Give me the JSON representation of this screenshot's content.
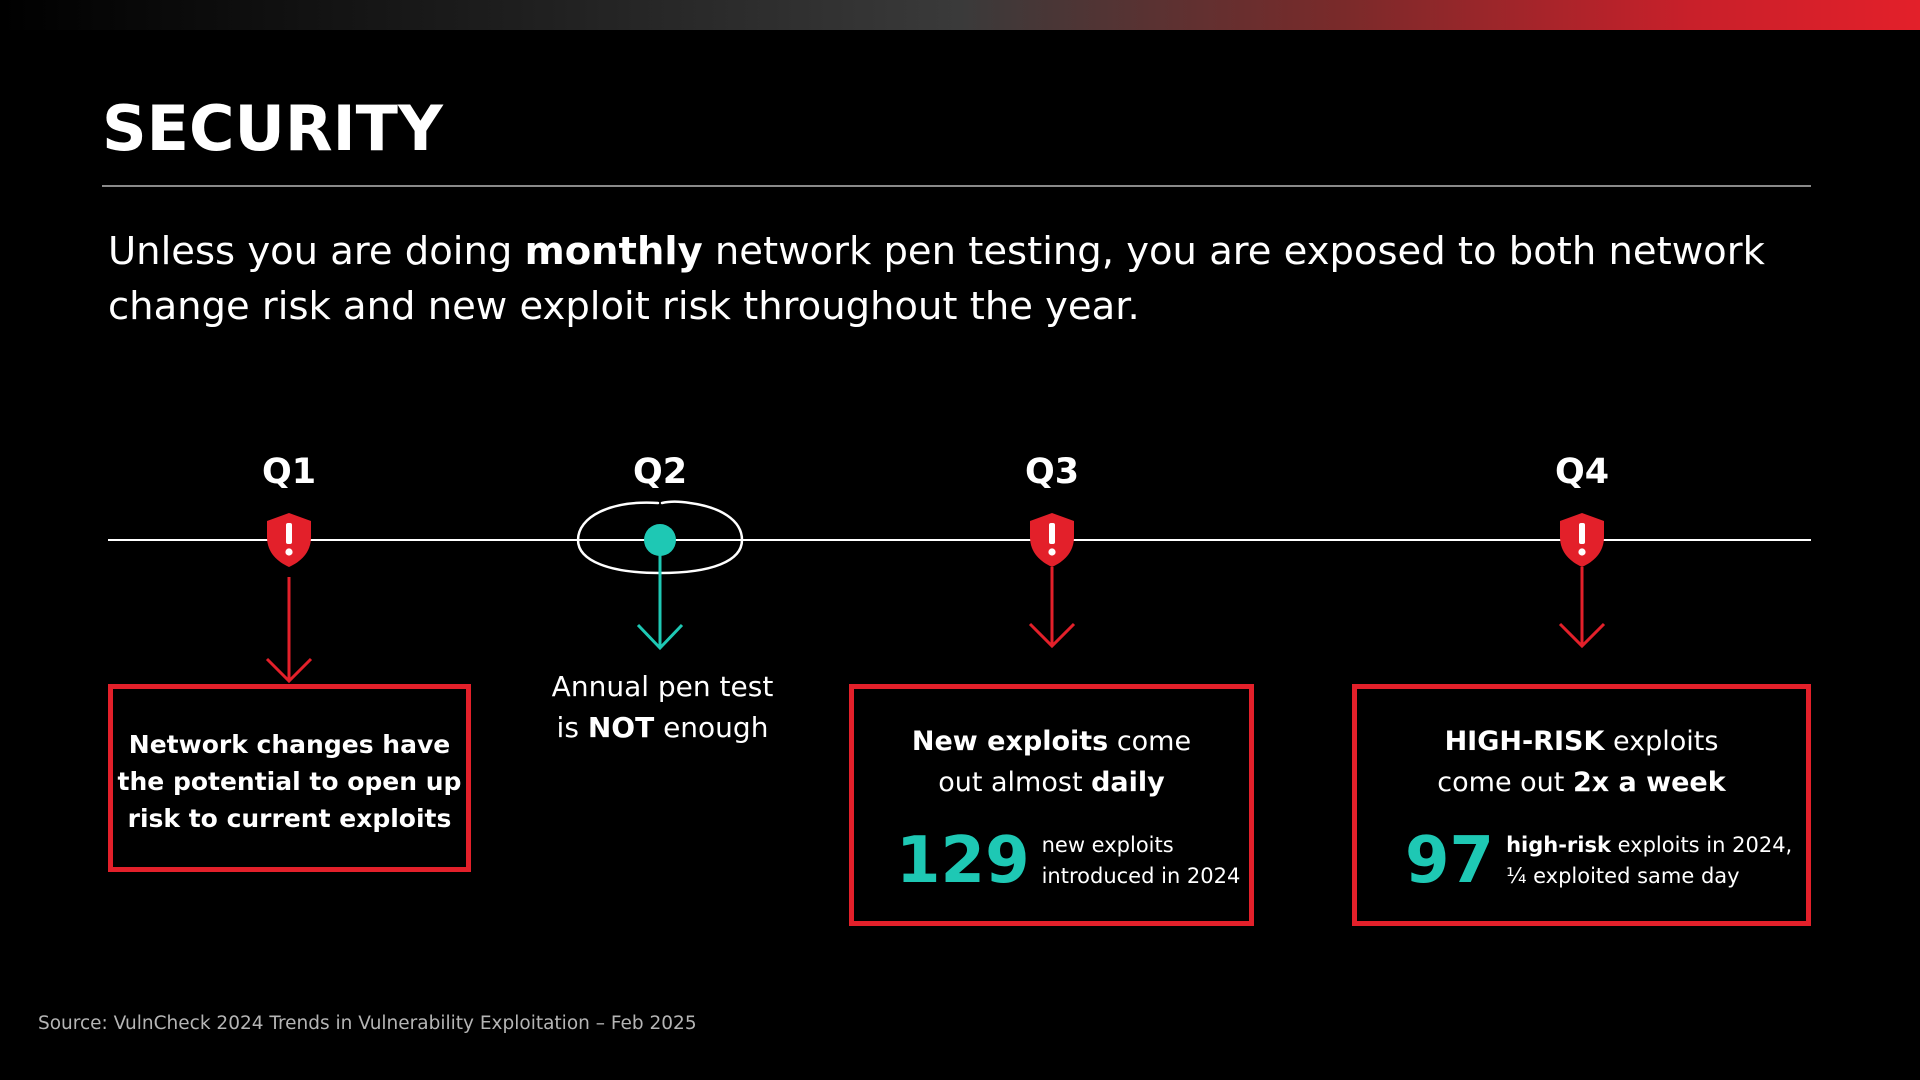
{
  "colors": {
    "accent_red": "#e3202a",
    "accent_teal": "#1ec8b4",
    "background": "#000000"
  },
  "title": "SECURITY",
  "intro": {
    "part1": "Unless you are doing ",
    "bold": "monthly",
    "part2": " network pen testing, you are exposed to both network change risk and new exploit risk throughout the year."
  },
  "timeline": {
    "q1": {
      "label": "Q1",
      "icon": "alert-shield-icon"
    },
    "q2": {
      "label": "Q2",
      "icon": "teal-dot-marker",
      "caption_line1": "Annual pen test",
      "caption_pre": "is ",
      "caption_bold": "NOT",
      "caption_post": " enough"
    },
    "q3": {
      "label": "Q3",
      "icon": "alert-shield-icon"
    },
    "q4": {
      "label": "Q4",
      "icon": "alert-shield-icon"
    }
  },
  "boxes": {
    "q1": {
      "line1": "Network changes have",
      "line2": "the potential to open up",
      "line3": "risk to current exploits"
    },
    "q3": {
      "bold1": "New exploits",
      "text1": " come",
      "text2": "out almost ",
      "bold2": "daily",
      "stat_num": "129",
      "stat_line1": "new exploits",
      "stat_line2": "introduced in 2024"
    },
    "q4": {
      "bold1": "HIGH-RISK",
      "text1": " exploits",
      "text2": "come out ",
      "bold2": "2x a week",
      "stat_num": "97",
      "stat_bold": "high-risk",
      "stat_line1_rest": " exploits in 2024,",
      "stat_line2": "¼ exploited same day"
    }
  },
  "source": "Source: VulnCheck 2024 Trends in Vulnerability Exploitation  – Feb 2025"
}
